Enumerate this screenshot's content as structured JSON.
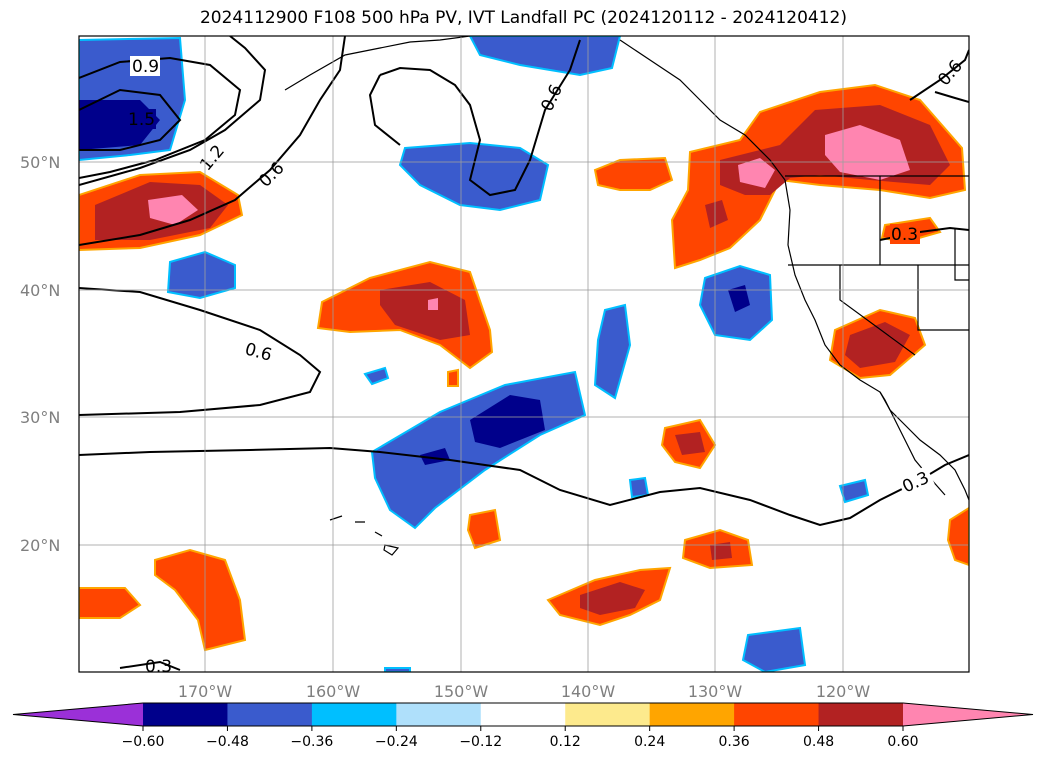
{
  "title": "2024112900 F108 500 hPa PV, IVT Landfall PC (2024120112 - 2024120412)",
  "lon_labels": [
    "170°W",
    "160°W",
    "150°W",
    "140°W",
    "130°W",
    "120°W"
  ],
  "lat_labels": [
    "50°N",
    "40°N",
    "30°N",
    "20°N"
  ],
  "colorbar": {
    "ticks": [
      "−0.60",
      "−0.48",
      "−0.36",
      "−0.24",
      "−0.12",
      "0.12",
      "0.24",
      "0.36",
      "0.48",
      "0.60"
    ],
    "colors": [
      "#9b30d8",
      "#00008b",
      "#3a5bcd",
      "#00bfff",
      "#afe0fb",
      "#ffffff",
      "#fdea8d",
      "#ffa500",
      "#ff4500",
      "#b22222",
      "#ff85b0"
    ]
  },
  "contour_labels": [
    "0.9",
    "1.5",
    "1.2",
    "0.6",
    "0.6",
    "0.6",
    "0.6",
    "0.3",
    "0.3",
    "0.3"
  ]
}
